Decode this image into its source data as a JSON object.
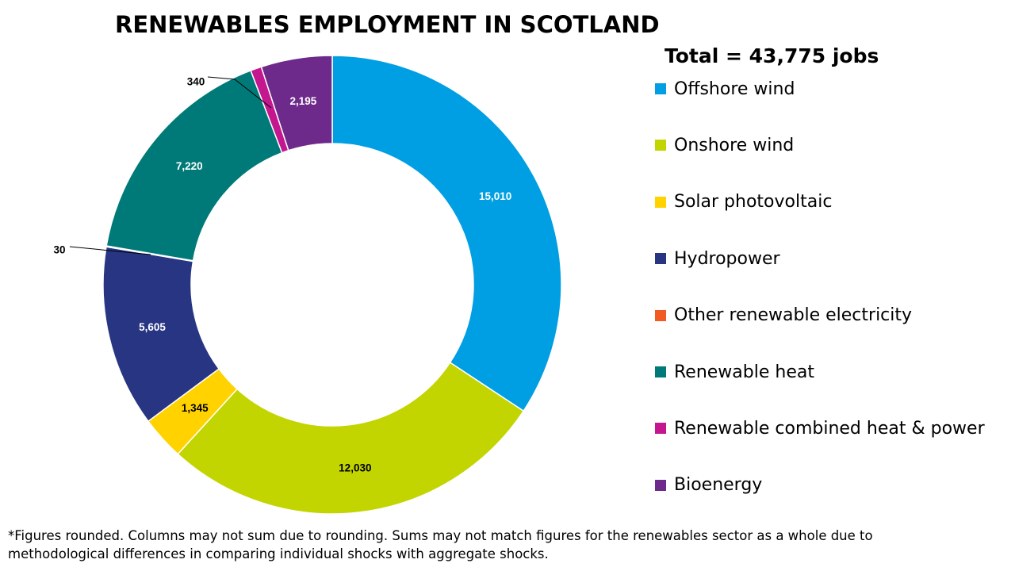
{
  "chart_data": {
    "type": "pie",
    "style": "donut",
    "title": "RENEWABLES EMPLOYMENT IN SCOTLAND",
    "subtitle": "Total = 43,775 jobs",
    "legend_position": "right",
    "categories": [
      "Offshore wind",
      "Onshore wind",
      "Solar photovoltaic",
      "Hydropower",
      "Other renewable electricity",
      "Renewable heat",
      "Renewable combined heat & power",
      "Bioenergy"
    ],
    "values": [
      15010,
      12030,
      1345,
      5605,
      30,
      7220,
      340,
      2195
    ],
    "value_labels": [
      "15,010",
      "12,030",
      "1,345",
      "5,605",
      "30",
      "7,220",
      "340",
      "2,195"
    ],
    "colors": [
      "#009FE3",
      "#C2D500",
      "#FFD200",
      "#283583",
      "#F15A22",
      "#007A78",
      "#C4168F",
      "#6E2A8B"
    ],
    "label_color_dark": "#000000",
    "label_color_light": "#ffffff"
  },
  "footnote": "*Figures rounded. Columns may not sum due to rounding. Sums may not match figures for the renewables sector as a whole due to methodological differences in comparing individual shocks with aggregate shocks."
}
